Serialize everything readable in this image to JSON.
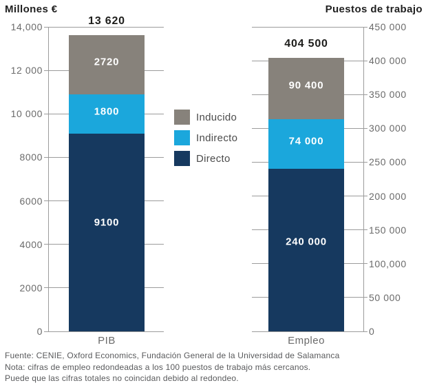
{
  "legend": {
    "items": [
      {
        "label": "Inducido",
        "color": "#87827b"
      },
      {
        "label": "Indirecto",
        "color": "#1ba7dc"
      },
      {
        "label": "Directo",
        "color": "#16395f"
      }
    ]
  },
  "footer": {
    "lines": [
      "Fuente: CENIE, Oxford Economics, Fundación General de la Universidad de Salamanca",
      "Nota: cifras de empleo redondeadas a los 100 puestos de trabajo más cercanos.",
      "Puede que las cifras totales no coincidan debido al redondeo."
    ]
  },
  "chart_data": [
    {
      "type": "bar",
      "stacked": true,
      "title": "Millones €",
      "categories": [
        "PIB"
      ],
      "series": [
        {
          "name": "Directo",
          "values": [
            9100
          ],
          "labels": [
            "9100"
          ]
        },
        {
          "name": "Indirecto",
          "values": [
            1800
          ],
          "labels": [
            "1800"
          ]
        },
        {
          "name": "Inducido",
          "values": [
            2720
          ],
          "labels": [
            "2720"
          ]
        }
      ],
      "total": 13620,
      "total_label": "13 620",
      "ylim": [
        0,
        14000
      ],
      "ytick_values": [
        0,
        2000,
        4000,
        6000,
        8000,
        10000,
        12000,
        14000
      ],
      "ytick_labels": [
        "0",
        "2000",
        "4000",
        "6000",
        "8000",
        "10 000",
        "12 000",
        "14,000"
      ],
      "axis_side": "left",
      "grid": true,
      "legend_position": "center-between-charts"
    },
    {
      "type": "bar",
      "stacked": true,
      "title": "Puestos de trabajo",
      "categories": [
        "Empleo"
      ],
      "series": [
        {
          "name": "Directo",
          "values": [
            240000
          ],
          "labels": [
            "240 000"
          ]
        },
        {
          "name": "Indirecto",
          "values": [
            74000
          ],
          "labels": [
            "74 000"
          ]
        },
        {
          "name": "Inducido",
          "values": [
            90400
          ],
          "labels": [
            "90 400"
          ]
        }
      ],
      "total": 404500,
      "total_label": "404 500",
      "ylim": [
        0,
        450000
      ],
      "ytick_values": [
        0,
        50000,
        100000,
        150000,
        200000,
        250000,
        300000,
        350000,
        400000,
        450000
      ],
      "ytick_labels": [
        "0",
        "50 000",
        "100,000",
        "150 000",
        "200 000",
        "250 000",
        "300 000",
        "350 000",
        "400 000",
        "450 000"
      ],
      "axis_side": "right",
      "grid": true
    }
  ]
}
